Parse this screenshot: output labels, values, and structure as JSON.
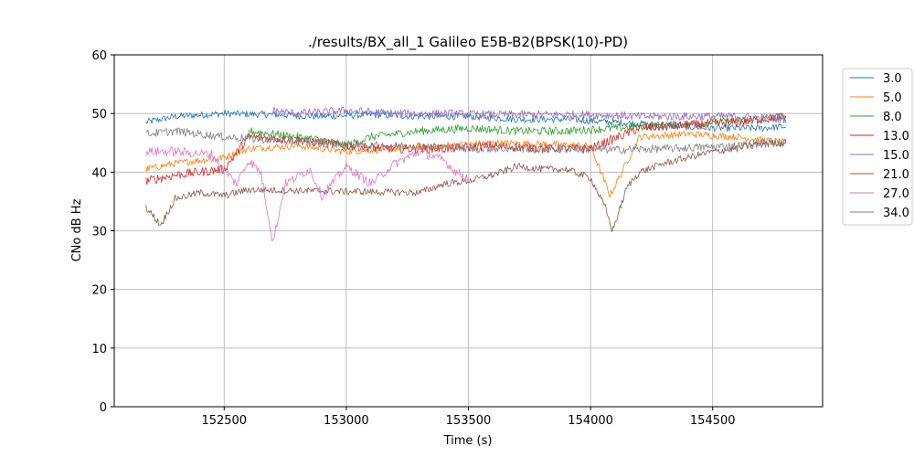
{
  "chart_data": {
    "type": "line",
    "title": "./results/BX_all_1 Galileo E5B-B2(BPSK(10)-PD)",
    "xlabel": "Time (s)",
    "ylabel": "CNo dB Hz",
    "xlim": [
      152050,
      154950
    ],
    "ylim": [
      0,
      60
    ],
    "xticks": [
      152500,
      153000,
      153500,
      154000,
      154500
    ],
    "yticks": [
      0,
      10,
      20,
      30,
      40,
      50,
      60
    ],
    "grid": true,
    "legend_position": "upper-right-outside",
    "series": [
      {
        "name": "3.0",
        "color": "#1f77b4",
        "noise": 0.6,
        "x": [
          152180,
          152300,
          152500,
          152700,
          152900,
          153100,
          153300,
          153500,
          153700,
          153900,
          154100,
          154300,
          154500,
          154700,
          154800
        ],
        "y": [
          48.5,
          49.5,
          50.0,
          49.8,
          49.5,
          49.8,
          49.5,
          49.5,
          49.0,
          49.0,
          48.5,
          48.0,
          47.5,
          47.5,
          47.8
        ]
      },
      {
        "name": "5.0",
        "color": "#ff7f0e",
        "noise": 0.6,
        "x": [
          152180,
          152300,
          152500,
          152600,
          152800,
          153000,
          153200,
          153400,
          153600,
          153800,
          154000,
          154080,
          154200,
          154400,
          154600,
          154800
        ],
        "y": [
          40.5,
          41.5,
          42.5,
          44.0,
          44.5,
          43.5,
          44.0,
          44.5,
          45.0,
          44.8,
          44.5,
          36.0,
          46.0,
          46.5,
          46.0,
          45.0
        ]
      },
      {
        "name": "8.0",
        "color": "#2ca02c",
        "noise": 0.7,
        "x": [
          152600,
          152700,
          152900,
          153000,
          153100,
          153300,
          153500,
          153700,
          153900,
          154100,
          154300,
          154500,
          154700,
          154800
        ],
        "y": [
          47.0,
          46.5,
          45.5,
          44.5,
          46.0,
          47.0,
          47.5,
          47.0,
          47.0,
          47.5,
          48.0,
          48.5,
          49.0,
          49.5
        ]
      },
      {
        "name": "13.0",
        "color": "#d62728",
        "noise": 0.8,
        "x": [
          152180,
          152300,
          152500,
          152600,
          152800,
          153000,
          153200,
          153400,
          153600,
          153800,
          154000,
          154200,
          154400,
          154600,
          154800
        ],
        "y": [
          38.5,
          39.5,
          40.5,
          46.0,
          45.5,
          44.5,
          44.0,
          44.0,
          44.5,
          44.0,
          44.0,
          47.5,
          48.0,
          48.5,
          49.5
        ]
      },
      {
        "name": "15.0",
        "color": "#9467bd",
        "noise": 0.7,
        "x": [
          152700,
          152800,
          153000,
          153200,
          153400,
          153600,
          153800,
          154000,
          154200,
          154400,
          154600,
          154800
        ],
        "y": [
          50.5,
          50.0,
          50.5,
          50.0,
          50.0,
          49.8,
          49.8,
          49.8,
          49.5,
          49.5,
          49.5,
          49.0
        ]
      },
      {
        "name": "21.0",
        "color": "#8c564b",
        "noise": 0.6,
        "x": [
          152180,
          152240,
          152300,
          152400,
          152500,
          152600,
          153300,
          153400,
          153500,
          153600,
          153700,
          153800,
          153900,
          154000,
          154060,
          154090,
          154150,
          154200,
          154300,
          154400,
          154500,
          154600,
          154700,
          154800
        ],
        "y": [
          34.0,
          31.0,
          35.5,
          36.5,
          36.0,
          37.0,
          36.5,
          38.0,
          38.5,
          39.5,
          41.0,
          40.5,
          40.5,
          39.0,
          34.0,
          30.0,
          37.5,
          40.0,
          41.5,
          42.5,
          43.5,
          44.0,
          45.0,
          45.0
        ]
      },
      {
        "name": "27.0",
        "color": "#e377c2",
        "noise": 0.8,
        "x": [
          152180,
          152300,
          152450,
          152550,
          152600,
          152650,
          152700,
          152750,
          152850,
          152900,
          153000,
          153100,
          153200,
          153300,
          153400,
          153450,
          153500
        ],
        "y": [
          43.5,
          43.5,
          43.0,
          38.0,
          42.0,
          40.0,
          28.0,
          38.0,
          40.5,
          36.0,
          41.0,
          38.0,
          41.5,
          43.5,
          42.0,
          40.0,
          39.0
        ]
      },
      {
        "name": "34.0",
        "color": "#7f7f7f",
        "noise": 0.7,
        "x": [
          152180,
          152300,
          152500,
          152700,
          152900,
          153100,
          153300,
          153500,
          153700,
          153900,
          154100,
          154300,
          154500,
          154700,
          154800
        ],
        "y": [
          46.5,
          47.0,
          46.0,
          45.5,
          45.0,
          44.5,
          44.5,
          44.0,
          44.0,
          44.0,
          43.8,
          44.0,
          44.3,
          44.8,
          45.0
        ]
      }
    ]
  }
}
